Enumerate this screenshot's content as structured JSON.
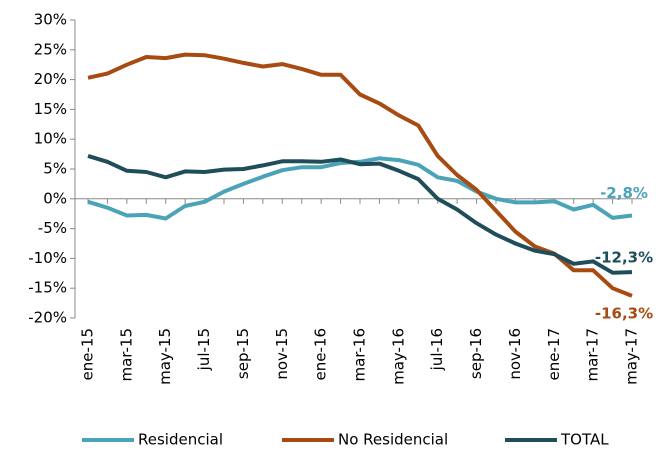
{
  "chart_data": {
    "type": "line",
    "categories": [
      "ene-15",
      null,
      "mar-15",
      null,
      "may-15",
      null,
      "jul-15",
      null,
      "sep-15",
      null,
      "nov-15",
      null,
      "ene-16",
      null,
      "mar-16",
      null,
      "may-16",
      null,
      "jul-16",
      null,
      "sep-16",
      null,
      "nov-16",
      null,
      "ene-17",
      null,
      "mar-17",
      null,
      "may-17"
    ],
    "series": [
      {
        "name": "Residencial",
        "color": "#4ba3b8",
        "values": [
          -0.5,
          -1.5,
          -2.8,
          -2.7,
          -3.3,
          -1.2,
          -0.5,
          1.2,
          2.5,
          3.7,
          4.8,
          5.3,
          5.3,
          6.0,
          6.2,
          6.8,
          6.5,
          5.7,
          3.6,
          3.0,
          1.2,
          0.0,
          -0.6,
          -0.6,
          -0.4,
          -1.8,
          -1.0,
          -3.2,
          -2.8
        ],
        "value_labels": [
          null,
          null,
          null,
          null,
          null,
          null,
          null,
          null,
          null,
          null,
          null,
          null,
          null,
          null,
          null,
          null,
          null,
          null,
          null,
          null,
          null,
          null,
          null,
          null,
          null,
          null,
          null,
          null,
          "-2,8%"
        ]
      },
      {
        "name": "No Residencial",
        "color": "#a84b12",
        "values": [
          20.3,
          21.0,
          22.5,
          23.8,
          23.6,
          24.2,
          24.1,
          23.5,
          22.8,
          22.2,
          22.6,
          21.8,
          20.8,
          20.8,
          17.5,
          16.0,
          14.0,
          12.3,
          7.2,
          4.0,
          1.5,
          -2.0,
          -5.5,
          -8.0,
          -9.2,
          -12.0,
          -12.0,
          -15.0,
          -16.3
        ],
        "value_labels": [
          null,
          null,
          null,
          null,
          null,
          null,
          null,
          null,
          null,
          null,
          null,
          null,
          null,
          null,
          null,
          null,
          null,
          null,
          null,
          null,
          null,
          null,
          null,
          null,
          null,
          null,
          null,
          null,
          "-16,3%"
        ]
      },
      {
        "name": "TOTAL",
        "color": "#1f4e5a",
        "values": [
          7.2,
          6.2,
          4.7,
          4.5,
          3.6,
          4.6,
          4.5,
          4.9,
          5.0,
          5.6,
          6.3,
          6.3,
          6.2,
          6.6,
          5.8,
          5.9,
          4.7,
          3.3,
          0.0,
          -1.8,
          -4.1,
          -6.0,
          -7.5,
          -8.7,
          -9.3,
          -10.9,
          -10.5,
          -12.4,
          -12.3
        ],
        "value_labels": [
          null,
          null,
          null,
          null,
          null,
          null,
          null,
          null,
          null,
          null,
          null,
          null,
          null,
          null,
          null,
          null,
          null,
          null,
          null,
          null,
          null,
          null,
          null,
          null,
          null,
          null,
          null,
          null,
          "-12,3%"
        ]
      }
    ],
    "ylim": [
      -20,
      30
    ],
    "yticks": [
      {
        "value": -20,
        "label": "-20%"
      },
      {
        "value": -15,
        "label": "-15%"
      },
      {
        "value": -10,
        "label": "-10%"
      },
      {
        "value": -5,
        "label": "-5%"
      },
      {
        "value": 0,
        "label": "0%"
      },
      {
        "value": 5,
        "label": "5%"
      },
      {
        "value": 10,
        "label": "10%"
      },
      {
        "value": 15,
        "label": "15%"
      },
      {
        "value": 20,
        "label": "20%"
      },
      {
        "value": 25,
        "label": "25%"
      },
      {
        "value": 30,
        "label": "30%"
      }
    ],
    "grid": false,
    "legend": "bottom"
  }
}
